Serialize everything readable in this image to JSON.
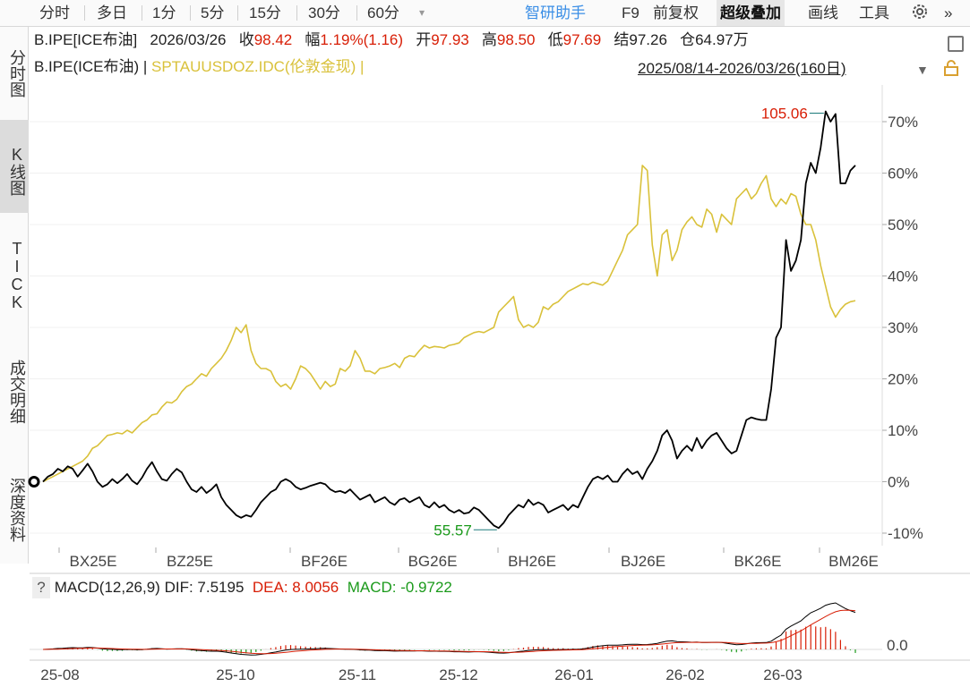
{
  "toolbar": {
    "items": [
      "分时",
      "多日",
      "1分",
      "5分",
      "15分",
      "30分",
      "60分"
    ],
    "assistant": "智研助手",
    "f9": "F9",
    "adjust": "前复权",
    "overlay": "超级叠加",
    "draw": "画线",
    "tools": "工具",
    "more": "»"
  },
  "left_tabs": [
    {
      "label": "分时图"
    },
    {
      "label": "K线图"
    },
    {
      "label": "TICK"
    },
    {
      "label": "成交明细"
    },
    {
      "label": "深度资料"
    }
  ],
  "quote": {
    "symbol": "B.IPE[ICE布油]",
    "date": "2026/03/26",
    "close_label": "收",
    "close": "98.42",
    "change_label": "幅",
    "change": "1.19%(1.16)",
    "open_label": "开",
    "open": "97.93",
    "high_label": "高",
    "high": "98.50",
    "low_label": "低",
    "low": "97.69",
    "settle_label": "结",
    "settle": "97.26",
    "oi_label": "仓",
    "oi": "64.97万"
  },
  "overlay_line": {
    "main": "B.IPE(ICE布油) |",
    "overlay": "SPTAUUSDOZ.IDC(伦敦金现) |",
    "range": "2025/08/14-2026/03/26(160日)"
  },
  "macd": {
    "help": "?",
    "name": "MACD(12,26,9)",
    "dif": "DIF: 7.5195",
    "dea": "DEA: 8.0056",
    "macd": "MACD: -0.9722",
    "axis_label": "0.0",
    "colors": {
      "dif": "#000000",
      "dea": "#d81e06",
      "bar_pos": "#d81e06",
      "bar_neg": "#1b9a1b"
    }
  },
  "chart_data": {
    "type": "line",
    "y_unit": "% change from first day",
    "ylim": [
      -10,
      75
    ],
    "yticks": [
      "70%",
      "60%",
      "50%",
      "40%",
      "30%",
      "20%",
      "10%",
      "0%",
      "-10%"
    ],
    "contract_labels": [
      "BX25E",
      "BZ25E",
      "BF26E",
      "BG26E",
      "BH26E",
      "BJ26E",
      "BK26E",
      "BM26E"
    ],
    "month_labels": [
      "25-08",
      "25-10",
      "25-11",
      "25-12",
      "26-01",
      "26-02",
      "26-03"
    ],
    "annotations": {
      "high": "105.06",
      "low": "55.57"
    },
    "colors": {
      "brent": "#000000",
      "gold": "#d9c13a"
    },
    "series": [
      {
        "name": "B.IPE(ICE布油)",
        "values": [
          0,
          1,
          1.5,
          2.5,
          2,
          3,
          2.5,
          1,
          2.2,
          3.5,
          2,
          0,
          -1,
          -0.5,
          0.5,
          -0.3,
          0.5,
          1.5,
          0.2,
          -0.5,
          0.8,
          2.5,
          3.8,
          2,
          0.5,
          0.2,
          1.5,
          2.5,
          1.8,
          0,
          -1.5,
          -2,
          -1,
          -2.2,
          -1.5,
          -0.5,
          -3,
          -4.5,
          -5.5,
          -6.5,
          -7,
          -6.5,
          -6.8,
          -5.5,
          -4,
          -3,
          -2,
          -1.5,
          0,
          0.5,
          0,
          -1,
          -1.5,
          -1.2,
          -0.8,
          -0.5,
          -0.2,
          -0.5,
          -1.5,
          -2,
          -1.8,
          -2.2,
          -1.5,
          -2.5,
          -3.5,
          -3,
          -2.5,
          -4,
          -3.5,
          -3,
          -4,
          -4.5,
          -3.5,
          -3.2,
          -4,
          -3.5,
          -3,
          -4.5,
          -5,
          -4,
          -5,
          -4.5,
          -5.5,
          -6,
          -5.5,
          -6.2,
          -6,
          -5,
          -5.5,
          -6.5,
          -7.5,
          -8.5,
          -9,
          -8,
          -6.5,
          -5.5,
          -4.5,
          -5,
          -3.5,
          -4.5,
          -4,
          -4.5,
          -6,
          -5.5,
          -5,
          -4.5,
          -5.5,
          -4.5,
          -5,
          -3,
          -1,
          0.5,
          1,
          0.5,
          1.2,
          0,
          0,
          1.5,
          2.5,
          1.5,
          2,
          0.5,
          2.5,
          4,
          6,
          9,
          10,
          8,
          4.5,
          6,
          7,
          6,
          8.5,
          6.5,
          8,
          9,
          9.5,
          8,
          6.5,
          5.5,
          6,
          9,
          12,
          12.5,
          12.2,
          12,
          12,
          18,
          28,
          30,
          47,
          41,
          43,
          47,
          58,
          62,
          60,
          65,
          72,
          70,
          71.5,
          58,
          58,
          60.5,
          61.5
        ],
        "values_endpoint": "98.42"
      },
      {
        "name": "SPTAUUSDOZ.IDC(伦敦金现)",
        "values": [
          0,
          0.5,
          1,
          1.5,
          2,
          2.5,
          3,
          3.5,
          4,
          5,
          6.5,
          7,
          8,
          9,
          9.2,
          9.5,
          9.3,
          10,
          9.5,
          10.5,
          11.5,
          12,
          13,
          13.2,
          14.5,
          15.5,
          15.3,
          16,
          17.5,
          18.5,
          19,
          20,
          21,
          20.5,
          22,
          23,
          24,
          25.5,
          27.5,
          30,
          29,
          30.5,
          25.5,
          23,
          22,
          22,
          21.5,
          19.5,
          18.5,
          19,
          18,
          20,
          22.5,
          22,
          21,
          19.5,
          18,
          19.5,
          18.5,
          19,
          22,
          21.5,
          22.5,
          25.5,
          24,
          21.5,
          21.5,
          21,
          22,
          22.2,
          22.5,
          23,
          22.2,
          24,
          24.5,
          24.3,
          25.5,
          26.5,
          26,
          26.3,
          26.2,
          26,
          26.5,
          26.7,
          27,
          28,
          28.5,
          29,
          29.2,
          29,
          29.5,
          30,
          33,
          34,
          35,
          36,
          31.5,
          30,
          30.5,
          30,
          31,
          34,
          33.5,
          34.5,
          35,
          36,
          37,
          37.5,
          38,
          38.5,
          38.3,
          38.8,
          38.5,
          38.2,
          39,
          41,
          43,
          45,
          48,
          49,
          50,
          61.5,
          60.5,
          46,
          40,
          48,
          49,
          43,
          45,
          49,
          50.5,
          51.5,
          50,
          49.5,
          53,
          52,
          48.5,
          52,
          51,
          50,
          55,
          56,
          57,
          55,
          56,
          58,
          59.5,
          55,
          53.5,
          55,
          54,
          56,
          55.5,
          52,
          50,
          50,
          47,
          42,
          38,
          34,
          32,
          33.5,
          34.5,
          35,
          35.2
        ]
      }
    ]
  }
}
